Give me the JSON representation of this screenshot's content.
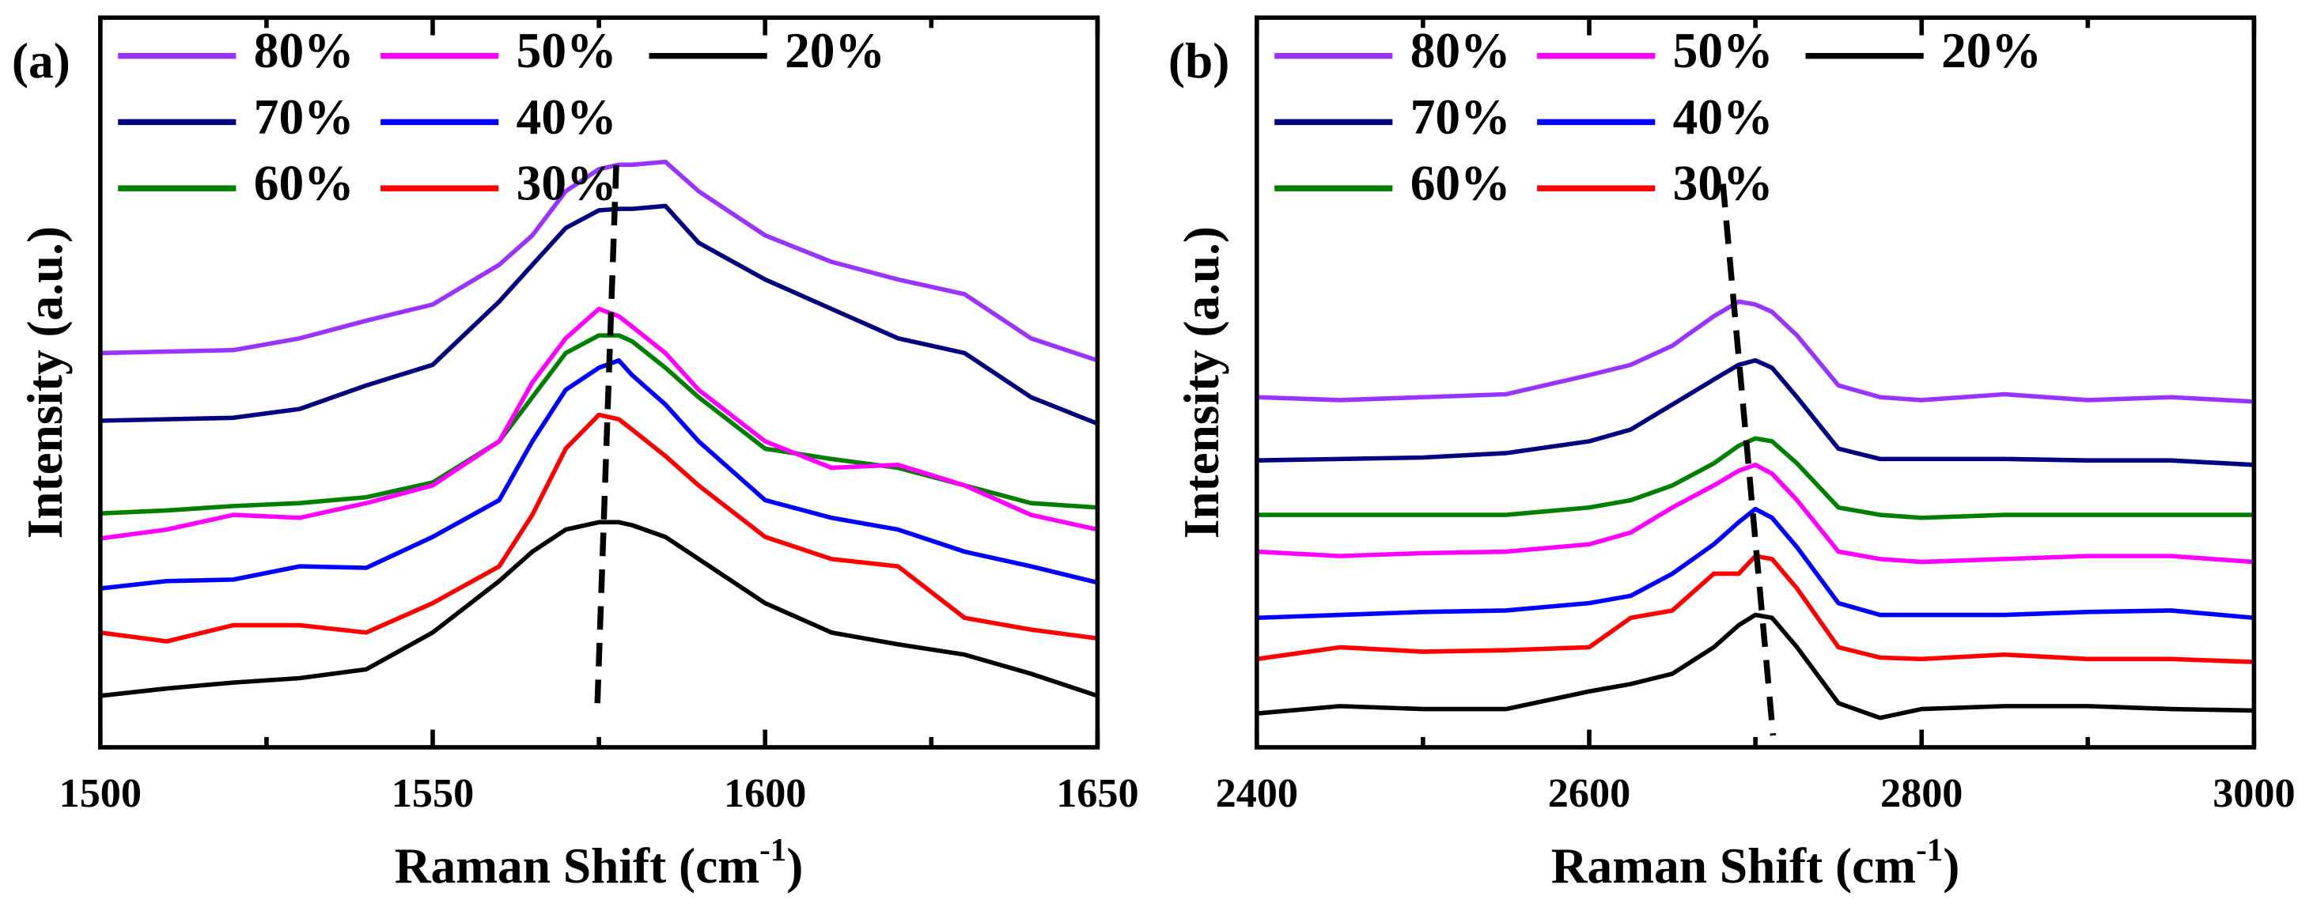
{
  "chart_data": [
    {
      "type": "line",
      "panel_label": "(a)",
      "ylabel": "Intensity (a.u.)",
      "xlabel_parts": [
        "Raman Shift (cm",
        "-1",
        ")"
      ],
      "xlim": [
        1500,
        1650
      ],
      "xticks": [
        1500,
        1550,
        1600,
        1650
      ],
      "xminor": [
        1525,
        1575,
        1625
      ],
      "ylim": [
        0,
        496
      ],
      "legend": "top",
      "x": [
        1500,
        1510,
        1520,
        1530,
        1540,
        1550,
        1560,
        1565,
        1570,
        1575,
        1578,
        1580,
        1585,
        1590,
        1600,
        1610,
        1620,
        1630,
        1640,
        1650
      ],
      "series": [
        {
          "name": "80%",
          "color": "#9933ff",
          "values": [
            268,
            269,
            270,
            278,
            290,
            301,
            328,
            348,
            378,
            393,
            396,
            396,
            398,
            378,
            348,
            330,
            318,
            308,
            278,
            263
          ]
        },
        {
          "name": "70%",
          "color": "#000080",
          "values": [
            222,
            223,
            224,
            230,
            246,
            260,
            303,
            328,
            353,
            365,
            366,
            366,
            368,
            343,
            318,
            298,
            278,
            268,
            238,
            220
          ]
        },
        {
          "name": "60%",
          "color": "#008000",
          "values": [
            159,
            161,
            164,
            166,
            170,
            180,
            208,
            238,
            268,
            280,
            280,
            276,
            258,
            238,
            203,
            196,
            190,
            178,
            166,
            163
          ]
        },
        {
          "name": "50%",
          "color": "#ff00ff",
          "values": [
            142,
            148,
            158,
            156,
            166,
            178,
            208,
            248,
            278,
            298,
            293,
            286,
            268,
            243,
            208,
            190,
            192,
            178,
            158,
            148
          ]
        },
        {
          "name": "40%",
          "color": "#0000ff",
          "values": [
            108,
            113,
            114,
            123,
            122,
            143,
            168,
            208,
            243,
            258,
            263,
            253,
            233,
            208,
            168,
            156,
            148,
            133,
            123,
            112
          ]
        },
        {
          "name": "30%",
          "color": "#ff0000",
          "values": [
            78,
            72,
            83,
            83,
            78,
            98,
            123,
            158,
            203,
            226,
            223,
            216,
            198,
            178,
            143,
            128,
            123,
            88,
            80,
            74
          ]
        },
        {
          "name": "20%",
          "color": "#000000",
          "values": [
            35,
            40,
            44,
            47,
            53,
            78,
            113,
            133,
            148,
            153,
            153,
            151,
            143,
            128,
            98,
            78,
            70,
            63,
            50,
            35
          ]
        }
      ]
    },
    {
      "type": "line",
      "panel_label": "(b)",
      "ylabel": "Intensity (a.u.)",
      "xlabel_parts": [
        "Raman Shift (cm",
        "-1",
        ")"
      ],
      "xlim": [
        2400,
        3000
      ],
      "xticks": [
        2400,
        2600,
        2800,
        3000
      ],
      "xminor": [
        2500,
        2700,
        2900
      ],
      "ylim": [
        0,
        496
      ],
      "legend": "top",
      "x": [
        2400,
        2450,
        2500,
        2550,
        2600,
        2625,
        2650,
        2675,
        2690,
        2700,
        2710,
        2725,
        2750,
        2775,
        2800,
        2850,
        2900,
        2950,
        3000
      ],
      "series": [
        {
          "name": "80%",
          "color": "#9933ff",
          "values": [
            238,
            236,
            238,
            240,
            253,
            260,
            273,
            293,
            303,
            301,
            296,
            280,
            246,
            238,
            236,
            240,
            236,
            238,
            235
          ]
        },
        {
          "name": "70%",
          "color": "#000080",
          "values": [
            195,
            196,
            197,
            200,
            208,
            216,
            233,
            250,
            260,
            263,
            258,
            238,
            203,
            196,
            196,
            196,
            195,
            195,
            192
          ]
        },
        {
          "name": "60%",
          "color": "#008000",
          "values": [
            158,
            158,
            158,
            158,
            163,
            168,
            178,
            193,
            205,
            210,
            208,
            193,
            163,
            158,
            156,
            158,
            158,
            158,
            158
          ]
        },
        {
          "name": "50%",
          "color": "#ff00ff",
          "values": [
            133,
            130,
            132,
            133,
            138,
            146,
            163,
            178,
            188,
            192,
            186,
            168,
            133,
            128,
            126,
            128,
            130,
            130,
            126
          ]
        },
        {
          "name": "40%",
          "color": "#0000ff",
          "values": [
            88,
            90,
            92,
            93,
            98,
            103,
            118,
            138,
            153,
            162,
            156,
            136,
            98,
            90,
            90,
            90,
            92,
            93,
            88
          ]
        },
        {
          "name": "30%",
          "color": "#ff0000",
          "values": [
            60,
            68,
            65,
            66,
            68,
            88,
            93,
            118,
            118,
            130,
            128,
            108,
            68,
            61,
            60,
            63,
            60,
            60,
            58
          ]
        },
        {
          "name": "20%",
          "color": "#000000",
          "values": [
            23,
            28,
            26,
            26,
            38,
            43,
            50,
            68,
            83,
            90,
            88,
            68,
            30,
            20,
            26,
            28,
            28,
            26,
            25
          ]
        }
      ]
    }
  ]
}
